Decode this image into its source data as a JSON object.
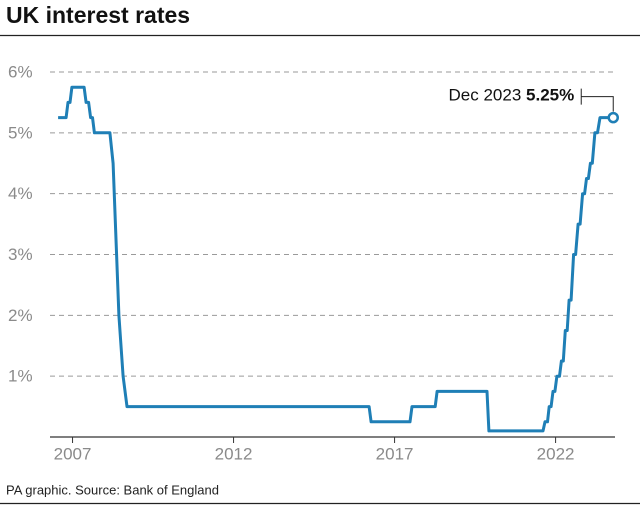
{
  "chart_data": {
    "type": "line",
    "title": "UK interest rates",
    "source": "PA graphic. Source: Bank of England",
    "x": [
      2006.55,
      2006.8,
      2006.86,
      2006.92,
      2006.98,
      2007.36,
      2007.42,
      2007.5,
      2007.56,
      2007.62,
      2007.68,
      2008.16,
      2008.26,
      2008.44,
      2008.57,
      2008.69,
      2016.21,
      2016.27,
      2017.48,
      2017.54,
      2018.26,
      2018.32,
      2019.87,
      2019.93,
      2021.61,
      2021.67,
      2021.75,
      2021.8,
      2021.86,
      2021.92,
      2021.98,
      2022.04,
      2022.12,
      2022.18,
      2022.24,
      2022.3,
      2022.36,
      2022.42,
      2022.48,
      2022.56,
      2022.62,
      2022.7,
      2022.76,
      2022.84,
      2022.9,
      2022.96,
      2023.02,
      2023.08,
      2023.14,
      2023.22,
      2023.3,
      2023.38,
      2023.79
    ],
    "series": [
      {
        "color": "#1f7fb6",
        "values": [
          5.25,
          5.25,
          5.5,
          5.5,
          5.75,
          5.75,
          5.5,
          5.5,
          5.25,
          5.25,
          5.0,
          5.0,
          4.5,
          2.0,
          1.0,
          0.5,
          0.5,
          0.25,
          0.25,
          0.5,
          0.5,
          0.75,
          0.75,
          0.1,
          0.1,
          0.25,
          0.25,
          0.5,
          0.5,
          0.75,
          0.75,
          1.0,
          1.0,
          1.25,
          1.25,
          1.75,
          1.75,
          2.25,
          2.25,
          3.0,
          3.0,
          3.5,
          3.5,
          4.0,
          4.0,
          4.25,
          4.25,
          4.5,
          4.5,
          5.0,
          5.0,
          5.25,
          5.25
        ]
      }
    ],
    "annotation": {
      "text": "Dec 2023",
      "value": 5.25,
      "label": "5.25%"
    },
    "xlim": [
      2006.3,
      2024.0
    ],
    "xticks": [
      2007,
      2012,
      2017,
      2022
    ],
    "ylim": [
      0,
      6
    ],
    "yticks": [
      {
        "value": 1,
        "label": "1%"
      },
      {
        "value": 2,
        "label": "2%"
      },
      {
        "value": 3,
        "label": "3%"
      },
      {
        "value": 4,
        "label": "4%"
      },
      {
        "value": 5,
        "label": "5%"
      },
      {
        "value": 6,
        "label": "6%"
      }
    ],
    "grid": true
  }
}
